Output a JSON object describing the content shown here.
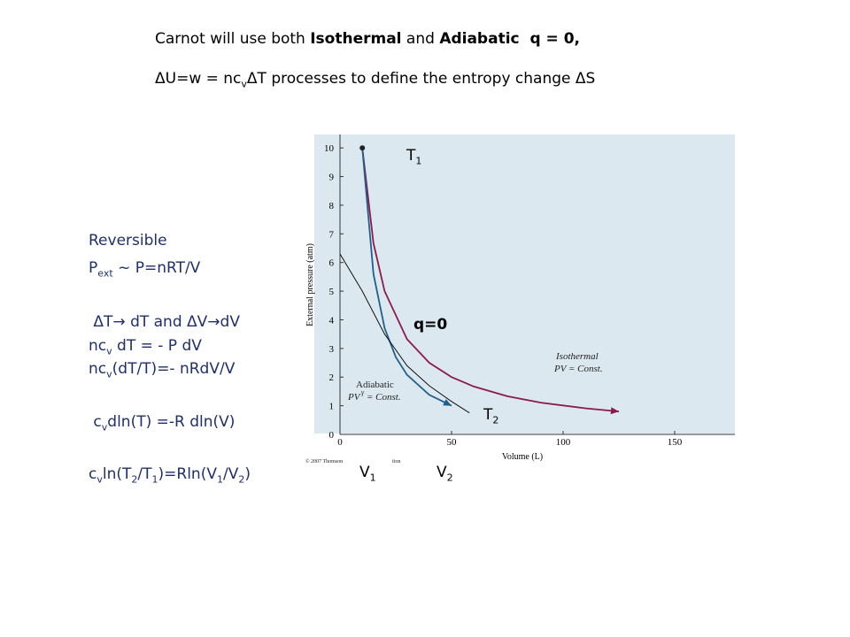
{
  "header": [
    [
      {
        "text": "Carnot will use both "
      },
      {
        "text": "Isothermal",
        "bold": true
      },
      {
        "text": " and "
      },
      {
        "text": "Adiabatic",
        "bold": true
      },
      {
        "text": "  q = 0,",
        "bold": true
      }
    ],
    [
      {
        "text": "ΔU=w = nc"
      },
      {
        "text": "v",
        "sub": true
      },
      {
        "text": "ΔT processes to define the entropy change ΔS"
      }
    ]
  ],
  "notes": [
    [
      {
        "text": "Reversible"
      }
    ],
    [
      {
        "text": "P"
      },
      {
        "text": "ext",
        "sub": true
      },
      {
        "text": " ~ P=nRT/V"
      }
    ],
    [
      {
        "text": " ΔT→ dT and ΔV→dV"
      }
    ],
    [
      {
        "text": "nc"
      },
      {
        "text": "v",
        "sub": true
      },
      {
        "text": " dT = - P dV"
      }
    ],
    [
      {
        "text": "nc"
      },
      {
        "text": "v",
        "sub": true
      },
      {
        "text": "(dT/T)=- nRdV/V"
      }
    ],
    [
      {
        "text": " c"
      },
      {
        "text": "v",
        "sub": true
      },
      {
        "text": "dln(T) =-R dln(V)"
      }
    ],
    [
      {
        "text": "c"
      },
      {
        "text": "v",
        "sub": true
      },
      {
        "text": "ln(T"
      },
      {
        "text": "2",
        "sub": true
      },
      {
        "text": "/T"
      },
      {
        "text": "1",
        "sub": true
      },
      {
        "text": ")=Rln(V"
      },
      {
        "text": "1",
        "sub": true
      },
      {
        "text": "/V"
      },
      {
        "text": "2",
        "sub": true
      },
      {
        "text": ")"
      }
    ]
  ],
  "labels": [
    [
      {
        "text": "T"
      },
      {
        "text": "1",
        "sub": true
      }
    ],
    [
      {
        "text": "q=0",
        "bold": true
      }
    ],
    [
      {
        "text": "T"
      },
      {
        "text": "2",
        "sub": true
      }
    ],
    [
      {
        "text": "V"
      },
      {
        "text": "1",
        "sub": true
      }
    ],
    [
      {
        "text": "V"
      },
      {
        "text": "2",
        "sub": true
      }
    ]
  ],
  "chart_data": {
    "type": "line",
    "xlabel": "Volume (L)",
    "ylabel": "External pressure (atm)",
    "xlim": [
      0,
      175
    ],
    "ylim": [
      0,
      10.5
    ],
    "xticks": [
      0,
      50,
      100,
      150
    ],
    "yticks": [
      0,
      1,
      2,
      3,
      4,
      5,
      6,
      7,
      8,
      9,
      10
    ],
    "series": [
      {
        "color": "#8b1a4a",
        "x": [
          10,
          15,
          20,
          30,
          40,
          50,
          60,
          75,
          90,
          110,
          125
        ],
        "values": [
          10,
          6.67,
          5,
          3.33,
          2.5,
          2,
          1.67,
          1.33,
          1.11,
          0.91,
          0.8
        ]
      },
      {
        "color": "#1f5f8b",
        "x": [
          10,
          15,
          20,
          25,
          30,
          40,
          50
        ],
        "values": [
          10,
          5.6,
          3.71,
          2.7,
          2.08,
          1.38,
          1
        ]
      },
      {
        "color": "#111111",
        "x": [
          0,
          10,
          20,
          30,
          40,
          50,
          58
        ],
        "values": [
          6.3,
          5,
          3.5,
          2.4,
          1.7,
          1.15,
          0.75
        ]
      }
    ],
    "annotations": [
      "Isothermal",
      "PV = Const.",
      "Adiabatic",
      "PV",
      "γ",
      " = Const.",
      "© 2007 Thomson",
      "tion"
    ]
  }
}
